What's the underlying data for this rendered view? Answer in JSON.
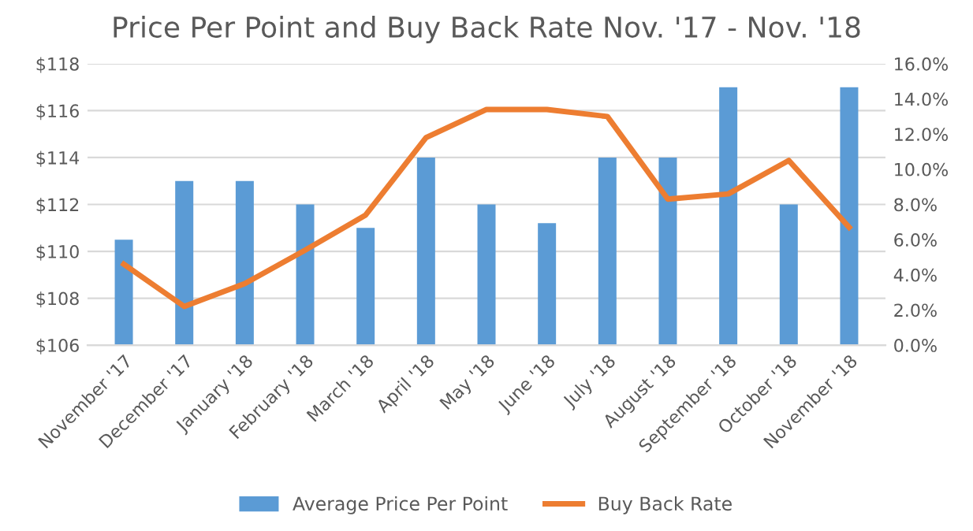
{
  "chart_data": {
    "type": "bar",
    "title": "Price Per Point and Buy Back Rate Nov. '17 - Nov. '18",
    "categories": [
      "November '17",
      "December '17",
      "January '18",
      "February '18",
      "March '18",
      "April '18",
      "May '18",
      "June '18",
      "July '18",
      "August '18",
      "September '18",
      "October '18",
      "November '18"
    ],
    "series": [
      {
        "name": "Average Price Per Point",
        "color": "#5b9bd5",
        "values": [
          110.5,
          113,
          113,
          112,
          111,
          114,
          112,
          111.2,
          114,
          114,
          117,
          112,
          117
        ]
      },
      {
        "name": "Buy Back Rate",
        "type": "line",
        "axis": "y2",
        "color": "#ed7d31",
        "values": [
          4.6,
          2.2,
          3.5,
          5.4,
          7.4,
          11.8,
          13.4,
          13.4,
          13.0,
          8.3,
          8.6,
          10.5,
          6.7
        ]
      }
    ],
    "ylim": [
      106,
      118
    ],
    "yticks": [
      {
        "value": 106,
        "label": "$106"
      },
      {
        "value": 108,
        "label": "$108"
      },
      {
        "value": 110,
        "label": "$110"
      },
      {
        "value": 112,
        "label": "$112"
      },
      {
        "value": 114,
        "label": "$114"
      },
      {
        "value": 116,
        "label": "$116"
      },
      {
        "value": 118,
        "label": "$118"
      }
    ],
    "y2lim": [
      0,
      16
    ],
    "y2ticks": [
      {
        "value": 0,
        "label": "0.0%"
      },
      {
        "value": 2,
        "label": "2.0%"
      },
      {
        "value": 4,
        "label": "4.0%"
      },
      {
        "value": 6,
        "label": "6.0%"
      },
      {
        "value": 8,
        "label": "8.0%"
      },
      {
        "value": 10,
        "label": "10.0%"
      },
      {
        "value": 12,
        "label": "12.0%"
      },
      {
        "value": 14,
        "label": "14.0%"
      },
      {
        "value": 16,
        "label": "16.0%"
      }
    ],
    "grid": "y",
    "legend": "bottom",
    "line_style": "solid",
    "marker": "none"
  }
}
